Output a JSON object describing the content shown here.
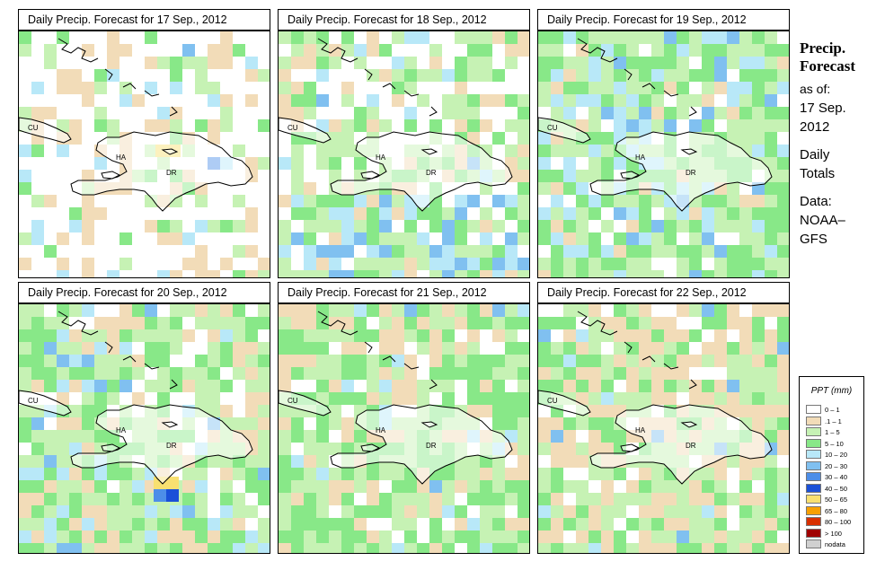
{
  "panels": [
    {
      "title": "Daily Precip. Forecast for  17 Sep., 2012",
      "seed": 17
    },
    {
      "title": "Daily Precip. Forecast for  18 Sep., 2012",
      "seed": 18
    },
    {
      "title": "Daily Precip. Forecast for  19 Sep., 2012",
      "seed": 19
    },
    {
      "title": "Daily Precip. Forecast for  20 Sep., 2012",
      "seed": 20
    },
    {
      "title": "Daily Precip. Forecast for  21 Sep., 2012",
      "seed": 21
    },
    {
      "title": "Daily Precip. Forecast for  22 Sep., 2012",
      "seed": 22
    }
  ],
  "map_labels": {
    "cuba": "CU",
    "haiti": "HA",
    "dominican_republic": "DR"
  },
  "sidebar": {
    "title_line1": "Precip.",
    "title_line2": "Forecast",
    "asof": "as of:",
    "date_line1": "17 Sep.",
    "date_line2": "2012",
    "totals_line1": "Daily",
    "totals_line2": "Totals",
    "data_line1": "Data:",
    "data_line2": "NOAA–",
    "data_line3": "GFS"
  },
  "legend": {
    "title": "PPT (mm)",
    "items": [
      {
        "label": "0 – 1",
        "color": "#ffffff"
      },
      {
        "label": ".1 – 1",
        "color": "#f2dcb8"
      },
      {
        "label": "1 – 5",
        "color": "#c6f2b4"
      },
      {
        "label": "5 – 10",
        "color": "#88e888"
      },
      {
        "label": "10 – 20",
        "color": "#b8e8f8"
      },
      {
        "label": "20 – 30",
        "color": "#80c0f0"
      },
      {
        "label": "30 – 40",
        "color": "#4d8ee8"
      },
      {
        "label": "40 – 50",
        "color": "#1a50d8"
      },
      {
        "label": "50 – 65",
        "color": "#f8e070"
      },
      {
        "label": "65 – 80",
        "color": "#f8a000"
      },
      {
        "label": "80 – 100",
        "color": "#d83000"
      },
      {
        "label": "> 100",
        "color": "#a00000"
      },
      {
        "label": "nodata",
        "color": "#d0d0d0"
      }
    ]
  }
}
